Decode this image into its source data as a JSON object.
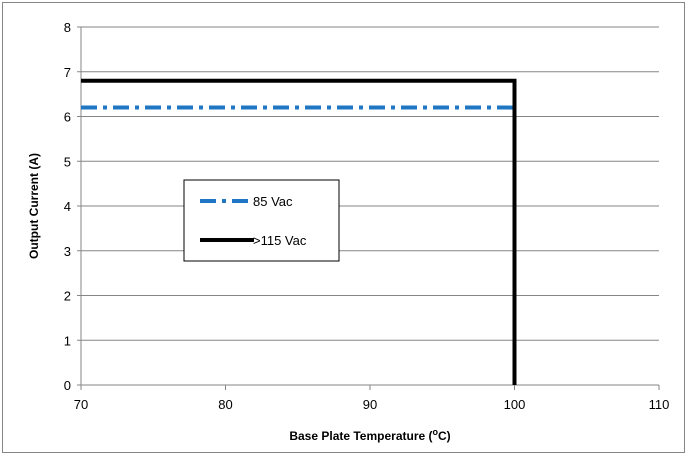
{
  "chart_data": {
    "type": "line",
    "title": "",
    "xlabel": "Base Plate Temperature (",
    "xlabel_sup": "o",
    "xlabel_tail": "C)",
    "ylabel": "Output Current (A)",
    "xlim": [
      70,
      110
    ],
    "ylim": [
      0,
      8
    ],
    "x_ticks": [
      70,
      80,
      90,
      100,
      110
    ],
    "y_ticks": [
      0,
      1,
      2,
      3,
      4,
      5,
      6,
      7,
      8
    ],
    "grid": "horizontal",
    "legend_position": "center-left",
    "series": [
      {
        "name": "85 Vac",
        "color": "#1f77c4",
        "style": "dash-dot",
        "x": [
          70,
          100
        ],
        "y": [
          6.2,
          6.2
        ]
      },
      {
        "name": ">115 Vac",
        "color": "#000000",
        "style": "solid",
        "x": [
          70,
          100,
          100
        ],
        "y": [
          6.8,
          6.8,
          0
        ]
      }
    ]
  }
}
